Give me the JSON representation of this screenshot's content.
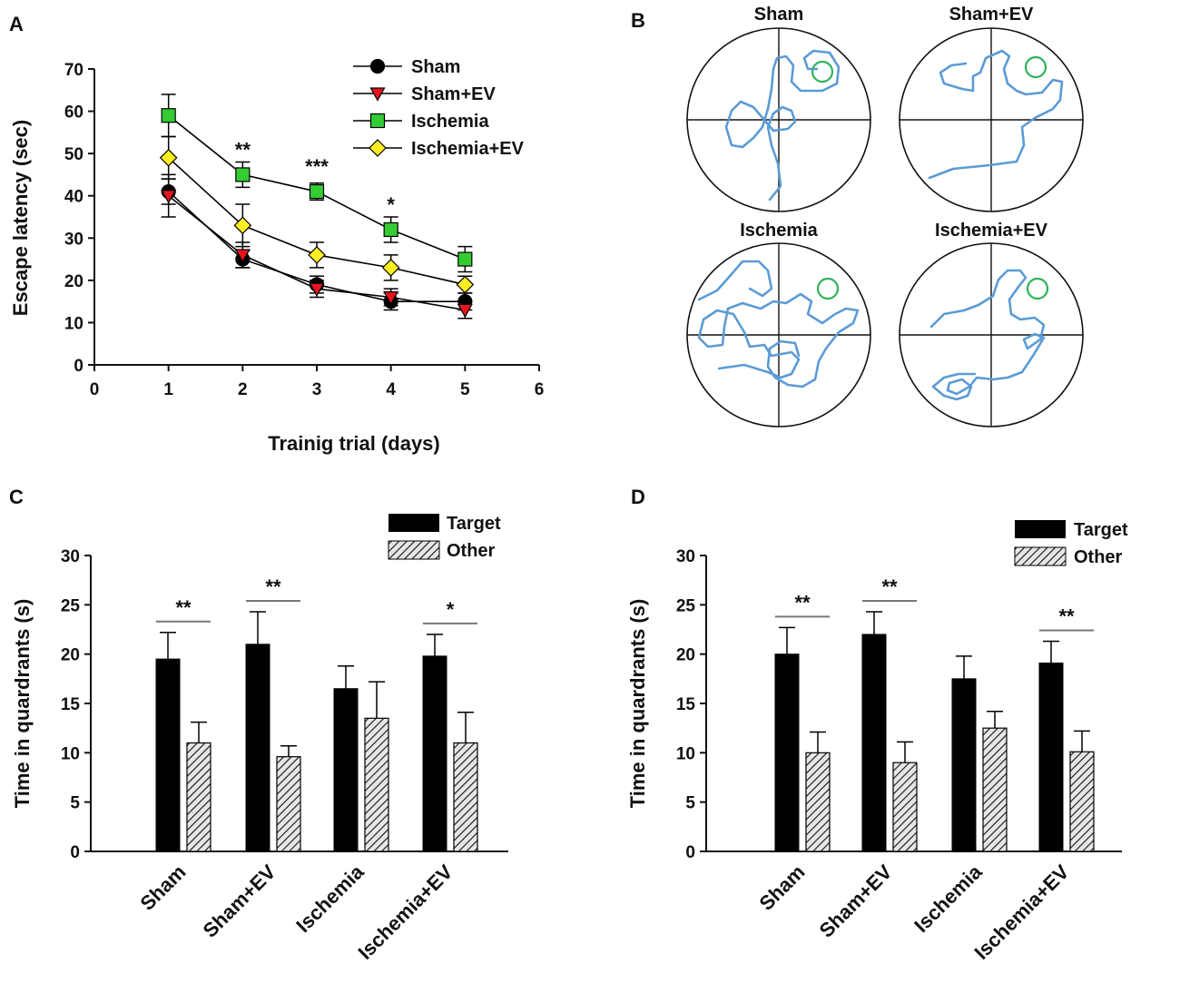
{
  "panels": {
    "A": "A",
    "B": "B",
    "C": "C",
    "D": "D"
  },
  "colors": {
    "sham": "#000000",
    "sham_ev": "#e8141e",
    "ischemia": "#33cc33",
    "ischemia_ev": "#ffee22",
    "path": "#5b9bd5",
    "platform": "#2db35a"
  },
  "chart_data": [
    {
      "id": "A",
      "type": "line",
      "xlabel": "Trainig trial (days)",
      "ylabel": "Escape latency (sec)",
      "xlim": [
        0,
        6
      ],
      "ylim": [
        0,
        70
      ],
      "x_ticks": [
        0,
        1,
        2,
        3,
        4,
        5,
        6
      ],
      "y_ticks": [
        0,
        10,
        20,
        30,
        40,
        50,
        60,
        70
      ],
      "x": [
        1,
        2,
        3,
        4,
        5
      ],
      "series": [
        {
          "name": "Sham",
          "marker": "circle",
          "color": "#000000",
          "values": [
            41,
            25,
            19,
            15,
            15
          ],
          "errors": [
            3,
            2,
            2,
            2,
            2
          ]
        },
        {
          "name": "Sham+EV",
          "marker": "triangle-down",
          "color": "#e8141e",
          "values": [
            40,
            26,
            18,
            16,
            13
          ],
          "errors": [
            5,
            3,
            2,
            2,
            2
          ]
        },
        {
          "name": "Ischemia",
          "marker": "square",
          "color": "#33cc33",
          "values": [
            59,
            45,
            41,
            32,
            25
          ],
          "errors": [
            5,
            3,
            2,
            3,
            3
          ]
        },
        {
          "name": "Ischemia+EV",
          "marker": "diamond",
          "color": "#ffee22",
          "values": [
            49,
            33,
            26,
            23,
            19
          ],
          "errors": [
            5,
            5,
            3,
            3,
            2
          ]
        }
      ],
      "annotations": [
        {
          "x": 2,
          "y": 51,
          "text": "**"
        },
        {
          "x": 3,
          "y": 47,
          "text": "***"
        },
        {
          "x": 4,
          "y": 38,
          "text": "*"
        }
      ]
    },
    {
      "id": "C",
      "type": "bar",
      "ylabel": "Time in quardrants (s)",
      "ylim": [
        0,
        30
      ],
      "y_ticks": [
        0,
        5,
        10,
        15,
        20,
        25,
        30
      ],
      "categories": [
        "Sham",
        "Sham+EV",
        "Ischemia",
        "Ischemia+EV"
      ],
      "series": [
        {
          "name": "Target",
          "values": [
            19.5,
            21,
            16.5,
            19.8
          ],
          "errors": [
            2.7,
            3.3,
            2.3,
            2.2
          ]
        },
        {
          "name": "Other",
          "values": [
            11,
            9.6,
            13.5,
            11
          ],
          "errors": [
            2.1,
            1.1,
            3.7,
            3.1
          ]
        }
      ],
      "significance": [
        "**",
        "**",
        "",
        "*"
      ]
    },
    {
      "id": "D",
      "type": "bar",
      "ylabel": "Time in quardrants (s)",
      "ylim": [
        0,
        30
      ],
      "y_ticks": [
        0,
        5,
        10,
        15,
        20,
        25,
        30
      ],
      "categories": [
        "Sham",
        "Sham+EV",
        "Ischemia",
        "Ischemia+EV"
      ],
      "series": [
        {
          "name": "Target",
          "values": [
            20,
            22,
            17.5,
            19.1
          ],
          "errors": [
            2.7,
            2.3,
            2.3,
            2.2
          ]
        },
        {
          "name": "Other",
          "values": [
            10,
            9,
            12.5,
            10.1
          ],
          "errors": [
            2.1,
            2.1,
            1.7,
            2.1
          ]
        }
      ],
      "significance": [
        "**",
        "**",
        "",
        "**"
      ]
    }
  ],
  "mazes": [
    {
      "title": "Sham"
    },
    {
      "title": "Sham+EV"
    },
    {
      "title": "Ischemia"
    },
    {
      "title": "Ischemia+EV"
    }
  ]
}
